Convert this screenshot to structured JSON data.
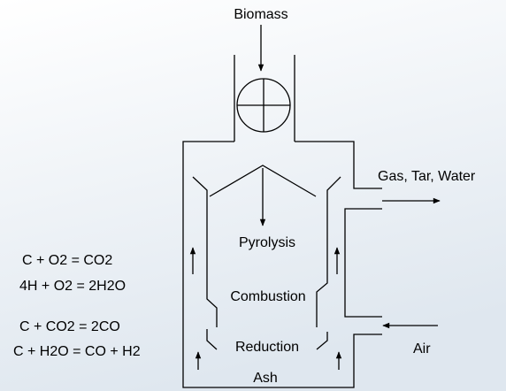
{
  "labels": {
    "input": "Biomass",
    "output": "Gas, Tar, Water",
    "zone_pyrolysis": "Pyrolysis",
    "zone_combustion": "Combustion",
    "zone_reduction": "Reduction",
    "bottom": "Ash",
    "air": "Air"
  },
  "reactions": [
    "C + O2 = CO2",
    "4H + O2 = 2H2O",
    "C + CO2 = 2CO",
    "C + H2O = CO + H2"
  ]
}
